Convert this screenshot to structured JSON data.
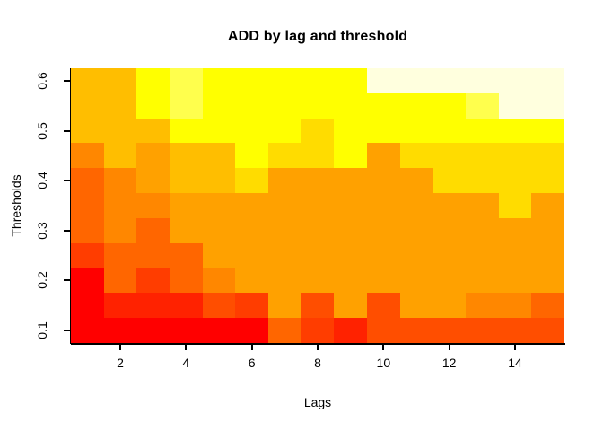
{
  "title": "ADD by lag and threshold",
  "axes": {
    "x_label": "Lags",
    "y_label": "Thresholds",
    "x_ticks": [
      {
        "label": "2",
        "value": 2
      },
      {
        "label": "4",
        "value": 4
      },
      {
        "label": "6",
        "value": 6
      },
      {
        "label": "8",
        "value": 8
      },
      {
        "label": "10",
        "value": 10
      },
      {
        "label": "12",
        "value": 12
      },
      {
        "label": "14",
        "value": 14
      }
    ],
    "y_ticks": [
      {
        "label": "0.1",
        "value": 0.1
      },
      {
        "label": "0.2",
        "value": 0.2
      },
      {
        "label": "0.3",
        "value": 0.3
      },
      {
        "label": "0.4",
        "value": 0.4
      },
      {
        "label": "0.5",
        "value": 0.5
      },
      {
        "label": "0.6",
        "value": 0.6
      }
    ]
  },
  "chart_data": {
    "type": "heatmap",
    "title": "ADD by lag and threshold",
    "xlabel": "Lags",
    "ylabel": "Thresholds",
    "x_values_lags": [
      1,
      2,
      3,
      4,
      5,
      6,
      7,
      8,
      9,
      10,
      11,
      12,
      13,
      14,
      15
    ],
    "y_values_thresholds": [
      0.1,
      0.15,
      0.2,
      0.25,
      0.3,
      0.35,
      0.4,
      0.45,
      0.5,
      0.55,
      0.6
    ],
    "x_range": [
      0.5,
      15.5
    ],
    "y_range": [
      0.075,
      0.625
    ],
    "grid_on": false,
    "legend": "none",
    "palette_heat_low_to_high": [
      "#FF0000",
      "#FF2200",
      "#FF3D00",
      "#FF4E00",
      "#FF6600",
      "#FF8700",
      "#FFA100",
      "#FFBE00",
      "#FFDC00",
      "#FFFF00",
      "#FFFF4D",
      "#FFFFDE"
    ],
    "grid_color_index_rows_top_to_bottom": [
      [
        7,
        7,
        9,
        10,
        9,
        9,
        9,
        9,
        9,
        11,
        11,
        11,
        11,
        11,
        11
      ],
      [
        7,
        7,
        9,
        10,
        9,
        9,
        9,
        9,
        9,
        9,
        9,
        9,
        10,
        11,
        11
      ],
      [
        7,
        7,
        7,
        9,
        9,
        9,
        9,
        8,
        9,
        9,
        9,
        9,
        9,
        9,
        9
      ],
      [
        5,
        7,
        6,
        7,
        7,
        9,
        8,
        8,
        9,
        6,
        8,
        8,
        8,
        8,
        8
      ],
      [
        4,
        5,
        6,
        7,
        7,
        8,
        6,
        6,
        6,
        6,
        6,
        8,
        8,
        8,
        8
      ],
      [
        4,
        5,
        5,
        6,
        6,
        6,
        6,
        6,
        6,
        6,
        6,
        6,
        6,
        8,
        6
      ],
      [
        4,
        5,
        4,
        6,
        6,
        6,
        6,
        6,
        6,
        6,
        6,
        6,
        6,
        6,
        6
      ],
      [
        2,
        4,
        4,
        4,
        6,
        6,
        6,
        6,
        6,
        6,
        6,
        6,
        6,
        6,
        6
      ],
      [
        0,
        4,
        2,
        4,
        5,
        6,
        6,
        6,
        6,
        6,
        6,
        6,
        6,
        6,
        6
      ],
      [
        0,
        1,
        1,
        1,
        3,
        2,
        6,
        3,
        6,
        3,
        6,
        6,
        5,
        5,
        4
      ],
      [
        0,
        0,
        0,
        0,
        0,
        0,
        4,
        2,
        1,
        3,
        3,
        3,
        3,
        3,
        3
      ]
    ],
    "row_order_note_thresholds_top_to_bottom": [
      0.6,
      0.55,
      0.5,
      0.45,
      0.4,
      0.35,
      0.3,
      0.25,
      0.2,
      0.15,
      0.1
    ]
  }
}
